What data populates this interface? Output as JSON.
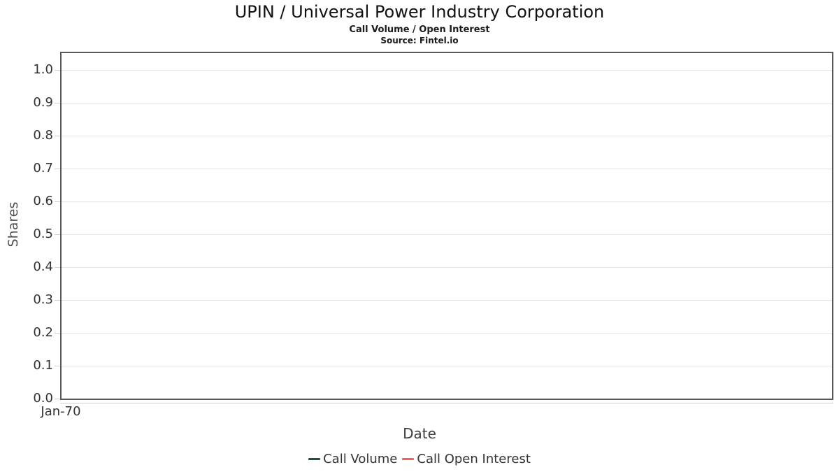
{
  "chart": {
    "title": "UPIN / Universal Power Industry Corporation",
    "subtitle": "Call Volume / Open Interest",
    "source": "Source: Fintel.io"
  },
  "chart_data": {
    "type": "line",
    "title": "UPIN / Universal Power Industry Corporation",
    "subtitle": "Call Volume / Open Interest",
    "source": "Source: Fintel.io",
    "xlabel": "Date",
    "ylabel": "Shares",
    "x_tick_labels": [
      "Jan-70"
    ],
    "y_tick_labels": [
      "0.0",
      "0.1",
      "0.2",
      "0.3",
      "0.4",
      "0.5",
      "0.6",
      "0.7",
      "0.8",
      "0.9",
      "1.0"
    ],
    "ylim": [
      0,
      1.05
    ],
    "grid": "horizontal-only",
    "legend_position": "bottom",
    "background_color": "#ffffff",
    "plot_border_color": "#595959",
    "gridline_color": "#e6e6e6",
    "series": [
      {
        "name": "Call Volume",
        "color": "#23503c",
        "x": [],
        "values": []
      },
      {
        "name": "Call Open Interest",
        "color": "#ff5c5c",
        "x": [],
        "values": []
      }
    ]
  }
}
